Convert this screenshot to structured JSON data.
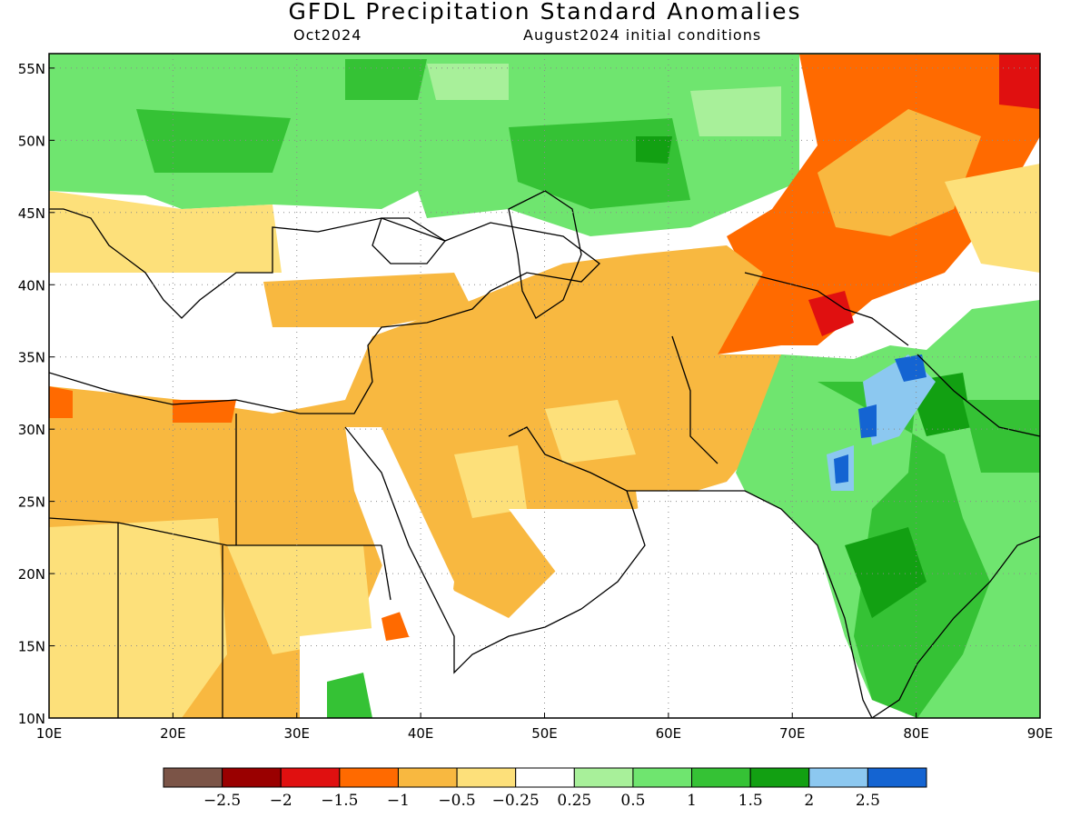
{
  "title": "GFDL Precipitation Standard Anomalies",
  "subtitle_left": "Oct2024",
  "subtitle_right": "August2024 initial conditions",
  "map": {
    "lon_range": [
      10,
      90
    ],
    "lat_range": [
      10,
      56
    ],
    "lon_ticks": [
      "10E",
      "20E",
      "30E",
      "40E",
      "50E",
      "60E",
      "70E",
      "80E",
      "90E"
    ],
    "lat_ticks": [
      "10N",
      "15N",
      "20N",
      "25N",
      "30N",
      "35N",
      "40N",
      "45N",
      "50N",
      "55N"
    ],
    "gridlines": "dotted"
  },
  "colorbar": {
    "colors": [
      "#7b5447",
      "#9a0000",
      "#e01010",
      "#ff6a00",
      "#f8b840",
      "#fde07a",
      "#ffffff",
      "#a8f09a",
      "#6fe56f",
      "#35c235",
      "#12a012",
      "#8cc8f0",
      "#1464d2"
    ],
    "labels": [
      "−2.5",
      "−2",
      "−1.5",
      "−1",
      "−0.5",
      "−0.25",
      "0.25",
      "0.5",
      "1",
      "1.5",
      "2",
      "2.5"
    ]
  },
  "palette": {
    "ocean": "#ffffff",
    "dry_light": "#fde07a",
    "dry": "#f8b840",
    "dry_strong": "#ff6a00",
    "dry_very": "#e01010",
    "dry_extreme": "#9a0000",
    "wet_light": "#a8f09a",
    "wet": "#6fe56f",
    "wet_mid": "#35c235",
    "wet_strong": "#12a012",
    "wet_blue": "#8cc8f0",
    "wet_deep": "#1464d2"
  }
}
